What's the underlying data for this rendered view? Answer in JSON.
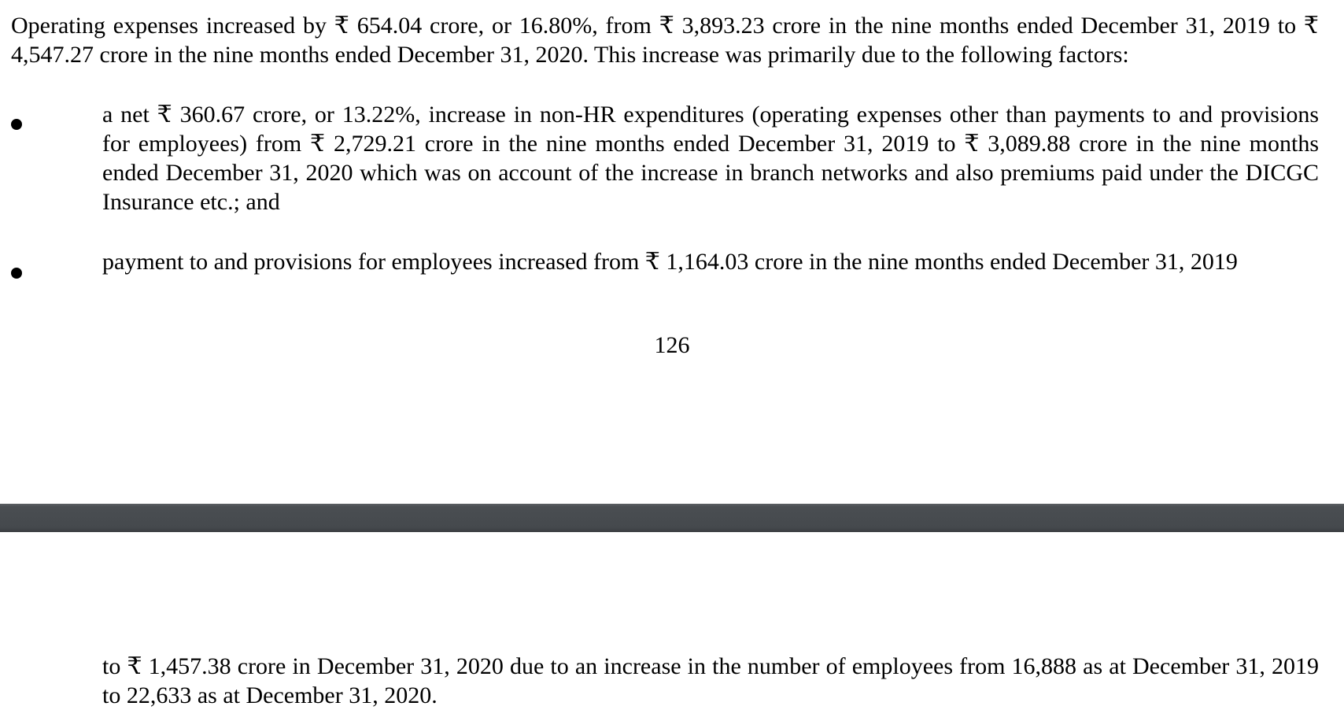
{
  "page_top": {
    "intro": "Operating expenses increased by ₹ 654.04 crore, or 16.80%, from ₹ 3,893.23 crore in the nine months ended December 31, 2019 to ₹ 4,547.27 crore in the nine months ended December 31, 2020. This increase was primarily due to the following factors:",
    "bullets": [
      {
        "text": "a net ₹ 360.67 crore, or 13.22%, increase in non-HR expenditures (operating expenses other than payments to and provisions for employees) from ₹ 2,729.21 crore in the nine months ended December 31, 2019 to ₹ 3,089.88 crore in the nine months ended December 31, 2020 which was on account of the increase in branch networks and also premiums paid under the DICGC Insurance etc.; and"
      },
      {
        "text": "payment to and provisions for employees increased from ₹ 1,164.03 crore in the nine months ended December 31, 2019"
      }
    ],
    "page_number": "126"
  },
  "page_bottom": {
    "continuation": "to ₹ 1,457.38 crore in December 31, 2020 due to an increase in the number of employees from 16,888 as at December 31, 2019 to 22,633 as at December 31, 2020."
  }
}
